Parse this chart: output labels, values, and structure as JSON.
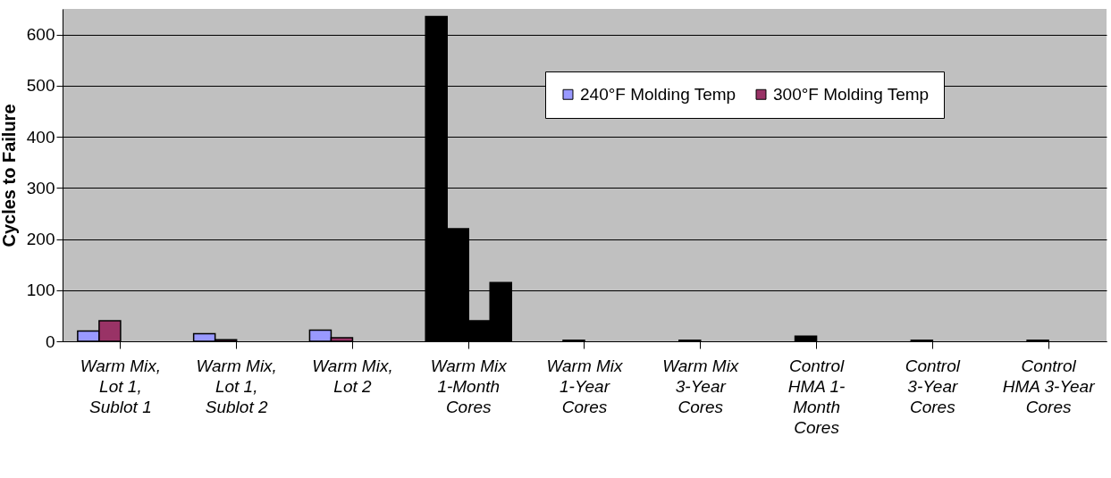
{
  "chart_data": {
    "type": "bar",
    "ylabel": "Cycles to Failure",
    "categories": [
      "Warm Mix, Lot 1, Sublot 1",
      "Warm Mix, Lot 1, Sublot 2",
      "Warm Mix, Lot 2",
      "Warm Mix 1-Month Cores",
      "Warm Mix 1-Year Cores",
      "Warm Mix 3-Year Cores",
      "Control HMA 1-Month Cores",
      "Control 3-Year Cores",
      "Control HMA 3-Year Cores"
    ],
    "series": [
      {
        "name": "240°F Molding Temp",
        "color": "#9999ff",
        "colors": [
          "#9999ff",
          "#9999ff",
          "#9999ff",
          "#000000",
          null,
          null,
          null,
          null,
          null
        ],
        "values": [
          20,
          15,
          22,
          635,
          null,
          null,
          null,
          null,
          null
        ]
      },
      {
        "name": "300°F Molding Temp",
        "color": "#993366",
        "colors": [
          "#993366",
          "#993366",
          "#993366",
          "#000000",
          "#000000",
          "#000000",
          "#000000",
          "#000000",
          "#000000"
        ],
        "values": [
          40,
          3,
          7,
          220,
          2,
          2,
          10,
          2,
          2
        ]
      },
      {
        "color": "#000000",
        "values": [
          null,
          null,
          null,
          40,
          null,
          null,
          null,
          null,
          null
        ]
      },
      {
        "color": "#000000",
        "values": [
          null,
          null,
          null,
          115,
          null,
          null,
          null,
          null,
          null
        ]
      }
    ],
    "ylim": [
      0,
      650
    ],
    "yticks": [
      0,
      100,
      200,
      300,
      400,
      500,
      600
    ],
    "grid": "y",
    "legend": "top right"
  }
}
